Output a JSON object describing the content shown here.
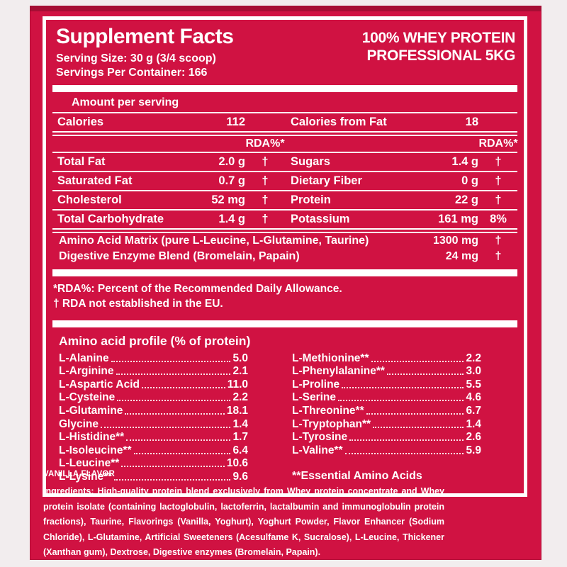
{
  "product": {
    "title_line1": "100% WHEY PROTEIN",
    "title_line2": "PROFESSIONAL 5KG"
  },
  "facts": {
    "title": "Supplement Facts",
    "serving_size": "Serving Size: 30 g (3/4 scoop)",
    "servings_per_container": "Servings Per Container: 166",
    "amount_per_serving": "Amount per serving",
    "calories_label": "Calories",
    "calories_value": "112",
    "calories_from_fat_label": "Calories from Fat",
    "calories_from_fat_value": "18",
    "rda_header": "RDA%*",
    "rows": [
      {
        "l_label": "Total Fat",
        "l_amount": "2.0 g",
        "l_rda": "†",
        "r_label": "Sugars",
        "r_amount": "1.4 g",
        "r_rda": "†"
      },
      {
        "l_label": "Saturated Fat",
        "l_amount": "0.7 g",
        "l_rda": "†",
        "r_label": "Dietary Fiber",
        "r_amount": "0 g",
        "r_rda": "†"
      },
      {
        "l_label": "Cholesterol",
        "l_amount": "52 mg",
        "l_rda": "†",
        "r_label": "Protein",
        "r_amount": "22 g",
        "r_rda": "†"
      },
      {
        "l_label": "Total Carbohydrate",
        "l_amount": "1.4 g",
        "l_rda": "†",
        "r_label": "Potassium",
        "r_amount": "161 mg",
        "r_rda": "8%"
      }
    ],
    "blend_rows": [
      {
        "label": "Amino Acid Matrix (pure L-Leucine, L-Glutamine, Taurine)",
        "amount": "1300 mg",
        "rda": "†"
      },
      {
        "label": "Digestive Enzyme Blend (Bromelain, Papain)",
        "amount": "24 mg",
        "rda": "†"
      }
    ],
    "footnote1": "*RDA%: Percent of the Recommended Daily Allowance.",
    "footnote2": "† RDA not established in the EU."
  },
  "amino": {
    "title": "Amino acid profile (% of protein)",
    "left": [
      {
        "name": "L-Alanine",
        "value": "5.0"
      },
      {
        "name": "L-Arginine",
        "value": "2.1"
      },
      {
        "name": "L-Aspartic Acid",
        "value": "11.0"
      },
      {
        "name": "L-Cysteine",
        "value": "2.2"
      },
      {
        "name": "L-Glutamine",
        "value": "18.1"
      },
      {
        "name": "Glycine",
        "value": "1.4"
      },
      {
        "name": "L-Histidine**",
        "value": "1.7"
      },
      {
        "name": "L-Isoleucine**",
        "value": "6.4"
      },
      {
        "name": "L-Leucine**",
        "value": "10.6"
      },
      {
        "name": "L-Lysine**",
        "value": "9.6"
      }
    ],
    "right": [
      {
        "name": "L-Methionine**",
        "value": "2.2"
      },
      {
        "name": "L-Phenylalanine**",
        "value": "3.0"
      },
      {
        "name": "L-Proline",
        "value": "5.5"
      },
      {
        "name": "L-Serine",
        "value": "4.6"
      },
      {
        "name": "L-Threonine**",
        "value": "6.7"
      },
      {
        "name": "L-Tryptophan**",
        "value": "1.4"
      },
      {
        "name": "L-Tyrosine",
        "value": "2.6"
      },
      {
        "name": "L-Valine**",
        "value": "5.9"
      }
    ],
    "essential_note": "**Essential Amino Acids"
  },
  "footer": {
    "flavor": "VANILLA FLAVOR",
    "ingredients": "Ingredients: High-quality protein blend exclusively from Whey protein concentrate and Whey protein isolate (containing lactoglobulin, lactoferrin, lactalbumin and immunoglobulin protein fractions), Taurine, Flavorings (Vanilla, Yoghurt), Yoghurt Powder, Flavor Enhancer (Sodium Chloride), L-Glutamine, Artificial Sweeteners (Acesulfame K, Sucralose), L-Leucine, Thickener (Xanthan gum), Dextrose, Digestive enzymes (Bromelain, Papain)."
  },
  "colors": {
    "label_red": "#d01242",
    "top_band_red": "#a50e34",
    "page_background": "#f2edee",
    "text_and_rules": "#ffffff"
  }
}
